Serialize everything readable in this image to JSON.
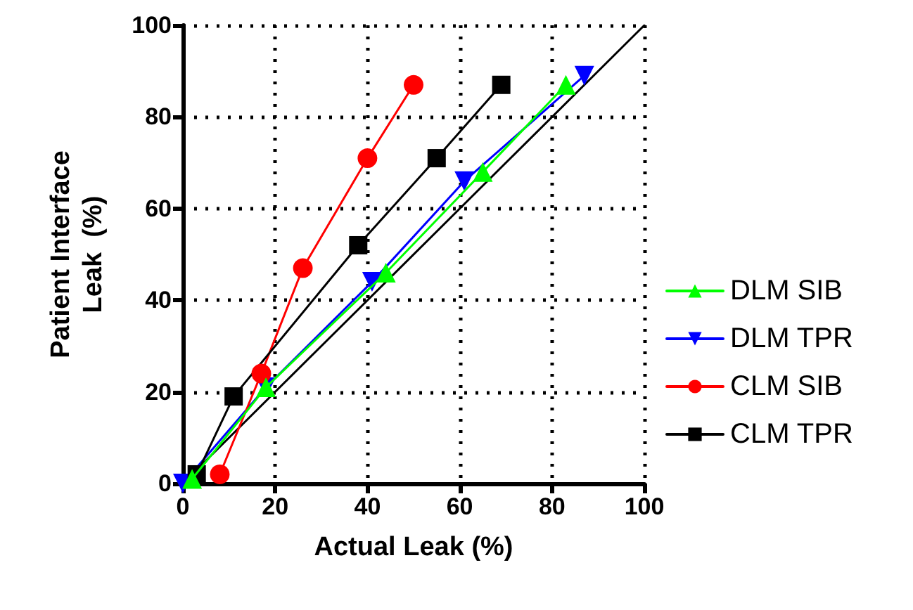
{
  "chart_data": {
    "type": "line",
    "xlabel": "Actual Leak (%)",
    "ylabel": "Patient Interface\nLeak  (%)",
    "xlim": [
      0,
      100
    ],
    "xticks": [
      0,
      20,
      40,
      60,
      80,
      100
    ],
    "ylim": [
      0,
      100
    ],
    "yticks": [
      0,
      20,
      40,
      60,
      80,
      100
    ],
    "grid": true,
    "legend": "right",
    "line_style": "solid",
    "series": [
      {
        "name": "DLM SIB",
        "color": "#00ff00",
        "marker": "triangle",
        "x": [
          2,
          18,
          44,
          65,
          83
        ],
        "values": [
          1,
          21,
          46,
          68,
          87
        ]
      },
      {
        "name": "DLM TPR",
        "color": "#0000ff",
        "marker": "triangle-down",
        "x": [
          0,
          18,
          41,
          61,
          87
        ],
        "values": [
          0,
          21,
          44,
          66,
          89
        ]
      },
      {
        "name": "CLM SIB",
        "color": "#ff0000",
        "marker": "circle",
        "x": [
          8,
          17,
          26,
          40,
          50
        ],
        "values": [
          2,
          24,
          47,
          71,
          87
        ]
      },
      {
        "name": "CLM TPR",
        "color": "#000000",
        "marker": "square",
        "x": [
          3,
          11,
          38,
          55,
          69
        ],
        "values": [
          2,
          19,
          52,
          71,
          87
        ]
      },
      {
        "color": "#000000",
        "marker": "none",
        "x": [
          0,
          100
        ],
        "values": [
          0,
          100
        ]
      }
    ]
  }
}
